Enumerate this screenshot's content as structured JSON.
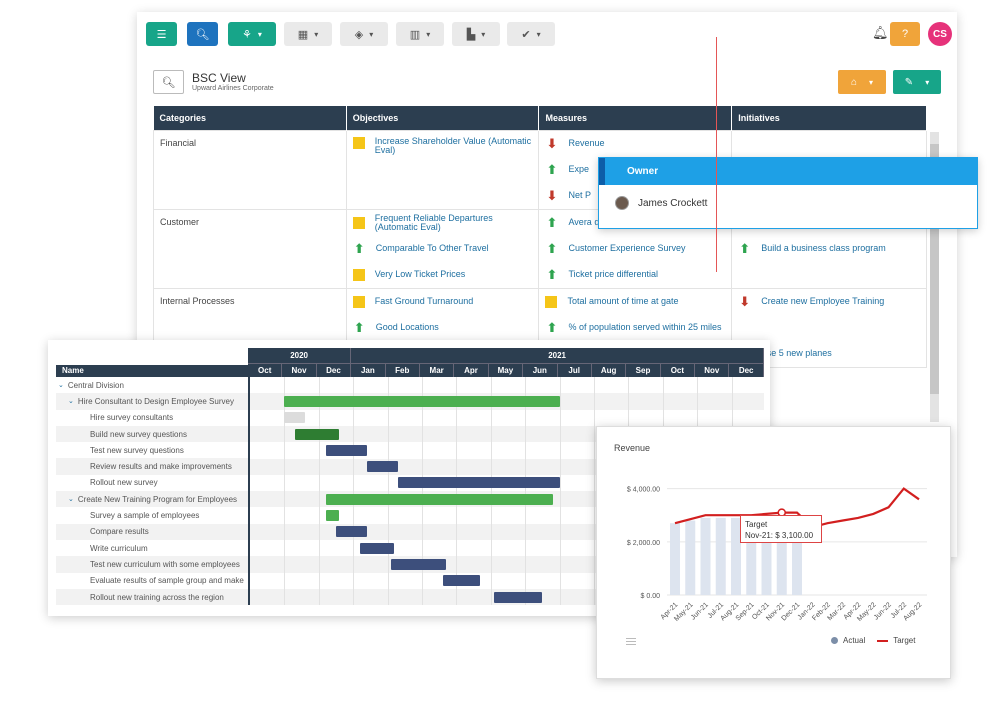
{
  "toolbar": {
    "buttons": [
      {
        "icon": "menu-icon",
        "glyph": "☰",
        "variant": "teal",
        "caret": false
      },
      {
        "icon": "search-icon",
        "glyph": "🔍︎",
        "variant": "blue",
        "caret": false
      },
      {
        "icon": "hierarchy-icon",
        "glyph": "⚘",
        "variant": "teal",
        "caret": true
      },
      {
        "icon": "map-icon",
        "glyph": "▦",
        "variant": "gray",
        "caret": true
      },
      {
        "icon": "cube-icon",
        "glyph": "◈",
        "variant": "gray",
        "caret": true
      },
      {
        "icon": "bar-chart-icon",
        "glyph": "▥",
        "variant": "gray",
        "caret": true
      },
      {
        "icon": "column-chart-icon",
        "glyph": "▙",
        "variant": "gray",
        "caret": true
      },
      {
        "icon": "check-icon",
        "glyph": "✔",
        "variant": "gray",
        "caret": true
      }
    ],
    "help_label": "?",
    "user_initials": "CS",
    "caret": "▾"
  },
  "view": {
    "title": "BSC View",
    "subtitle": "Upward Airlines Corporate"
  },
  "table": {
    "headers": [
      "Categories",
      "Objectives",
      "Measures",
      "Initiatives"
    ],
    "rows": [
      {
        "category": "Financial",
        "objectives": [
          {
            "status": "yellow",
            "text": "Increase Shareholder Value (Automatic Eval)"
          }
        ],
        "measures": [
          {
            "status": "down",
            "text": "Revenue"
          },
          {
            "status": "up",
            "text": "Expe"
          },
          {
            "status": "down",
            "text": "Net P"
          }
        ],
        "initiatives": []
      },
      {
        "category": "Customer",
        "objectives": [
          {
            "status": "yellow",
            "text": "Frequent Reliable Departures (Automatic Eval)"
          },
          {
            "status": "up",
            "text": "Comparable To Other Travel"
          },
          {
            "status": "yellow",
            "text": "Very Low Ticket Prices"
          }
        ],
        "measures": [
          {
            "status": "up",
            "text": "Avera depa"
          },
          {
            "status": "up",
            "text": "Customer Experience Survey"
          },
          {
            "status": "up",
            "text": "Ticket price differential"
          }
        ],
        "initiatives": [
          {
            "status": "none",
            "text": ""
          },
          {
            "status": "up",
            "text": "Build a business class program"
          },
          {
            "status": "none",
            "text": ""
          }
        ]
      },
      {
        "category": "Internal Processes",
        "objectives": [
          {
            "status": "yellow",
            "text": "Fast Ground Turnaround"
          },
          {
            "status": "up",
            "text": "Good Locations"
          }
        ],
        "measures": [
          {
            "status": "yellow",
            "text": "Total amount of time at gate"
          },
          {
            "status": "up",
            "text": "% of population served within 25 miles"
          }
        ],
        "initiatives": [
          {
            "status": "down",
            "text": "Create new Employee Training"
          },
          {
            "status": "none",
            "text": ""
          },
          {
            "status": "none",
            "text": "Purchase 5 new planes"
          }
        ]
      }
    ]
  },
  "owner_popup": {
    "header": "Owner",
    "name": "James Crockett"
  },
  "gantt": {
    "name_header": "Name",
    "years": [
      {
        "label": "2020",
        "months": 3
      },
      {
        "label": "2021",
        "months": 12
      }
    ],
    "months": [
      "Oct",
      "Nov",
      "Dec",
      "Jan",
      "Feb",
      "Mar",
      "Apr",
      "May",
      "Jun",
      "Jul",
      "Aug",
      "Sep",
      "Oct",
      "Nov",
      "Dec"
    ],
    "tasks": [
      {
        "name": "Central Division",
        "level": 0,
        "toggle": true,
        "bar": null
      },
      {
        "name": "Hire Consultant to Design Employee Survey",
        "level": 1,
        "toggle": true,
        "bar": {
          "start": 1.0,
          "end": 9.0,
          "color": "green"
        }
      },
      {
        "name": "Hire survey consultants",
        "level": 2,
        "toggle": false,
        "bar": {
          "start": 1.0,
          "end": 1.6,
          "color": "light"
        }
      },
      {
        "name": "Build new survey questions",
        "level": 2,
        "toggle": false,
        "bar": {
          "start": 1.3,
          "end": 2.6,
          "color": "dgreen"
        }
      },
      {
        "name": "Test new survey questions",
        "level": 2,
        "toggle": false,
        "bar": {
          "start": 2.2,
          "end": 3.4,
          "color": "navy"
        }
      },
      {
        "name": "Review results and make improvements",
        "level": 2,
        "toggle": false,
        "bar": {
          "start": 3.4,
          "end": 4.3,
          "color": "navy"
        }
      },
      {
        "name": "Rollout new survey",
        "level": 2,
        "toggle": false,
        "bar": {
          "start": 4.3,
          "end": 9.0,
          "color": "navy"
        }
      },
      {
        "name": "Create New Training Program for Employees",
        "level": 1,
        "toggle": true,
        "bar": {
          "start": 2.2,
          "end": 8.8,
          "color": "green"
        }
      },
      {
        "name": "Survey a sample of employees",
        "level": 2,
        "toggle": false,
        "bar": {
          "start": 2.2,
          "end": 2.6,
          "color": "green"
        }
      },
      {
        "name": "Compare results",
        "level": 2,
        "toggle": false,
        "bar": {
          "start": 2.5,
          "end": 3.4,
          "color": "navy"
        }
      },
      {
        "name": "Write curriculum",
        "level": 2,
        "toggle": false,
        "bar": {
          "start": 3.2,
          "end": 4.2,
          "color": "navy"
        }
      },
      {
        "name": "Test new curriculum with some employees",
        "level": 2,
        "toggle": false,
        "bar": {
          "start": 4.1,
          "end": 5.7,
          "color": "navy"
        }
      },
      {
        "name": "Evaluate results of sample group and make",
        "level": 2,
        "toggle": false,
        "bar": {
          "start": 5.6,
          "end": 6.7,
          "color": "navy"
        }
      },
      {
        "name": "Rollout new training across the region",
        "level": 2,
        "toggle": false,
        "bar": {
          "start": 7.1,
          "end": 8.5,
          "color": "navy"
        }
      }
    ]
  },
  "revenue": {
    "title": "Revenue",
    "tooltip": {
      "title": "Target",
      "text": "Nov-21: $ 3,100.00"
    },
    "legend": {
      "actual": "Actual",
      "target": "Target"
    }
  },
  "chart_data": {
    "type": "line",
    "title": "Revenue",
    "x": [
      "Apr-21",
      "May-21",
      "Jun-21",
      "Jul-21",
      "Aug-21",
      "Sep-21",
      "Oct-21",
      "Nov-21",
      "Dec-21",
      "Jan-22",
      "Feb-22",
      "Mar-22",
      "Apr-22",
      "May-22",
      "Jun-22",
      "Jul-22",
      "Aug-22"
    ],
    "yticks": [
      "$ 0.00",
      "$ 2,000.00",
      "$ 4,000.00"
    ],
    "ylim": [
      0,
      4400
    ],
    "series": [
      {
        "name": "Actual",
        "kind": "bar",
        "color": "#dde4ef",
        "values": [
          2700,
          2800,
          2900,
          2900,
          2900,
          2900,
          2900,
          2900,
          3000,
          null,
          null,
          null,
          null,
          null,
          null,
          null,
          null
        ]
      },
      {
        "name": "Target",
        "kind": "line",
        "color": "#d21f1f",
        "values": [
          2700,
          2850,
          3000,
          3000,
          3000,
          3000,
          3050,
          3100,
          3100,
          2550,
          2700,
          2800,
          2900,
          3050,
          3300,
          4000,
          3600
        ]
      }
    ],
    "grid": true,
    "legend": "bottom-right"
  }
}
